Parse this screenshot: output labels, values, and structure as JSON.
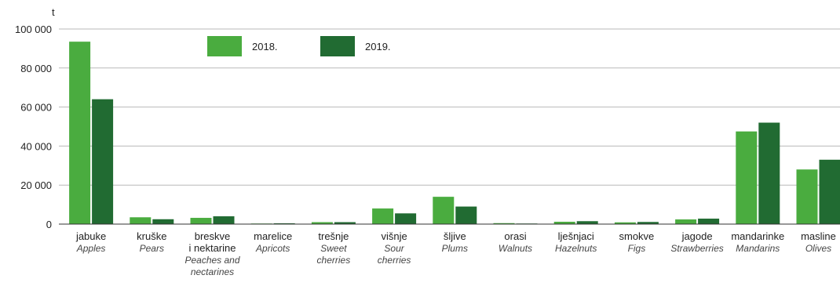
{
  "chart_data": {
    "type": "bar",
    "unit_label": "t",
    "ylim": [
      0,
      100000
    ],
    "y_ticks": [
      {
        "value": 0,
        "label": "0"
      },
      {
        "value": 20000,
        "label": "20 000"
      },
      {
        "value": 40000,
        "label": "40 000"
      },
      {
        "value": 60000,
        "label": "60 000"
      },
      {
        "value": 80000,
        "label": "80 000"
      },
      {
        "value": 100000,
        "label": "100 000"
      }
    ],
    "grid": true,
    "legend_position": "top-center",
    "categories": [
      {
        "label": [
          "jabuke"
        ],
        "sublabel": [
          "Apples"
        ]
      },
      {
        "label": [
          "kruške"
        ],
        "sublabel": [
          "Pears"
        ]
      },
      {
        "label": [
          "breskve",
          "i nektarine"
        ],
        "sublabel": [
          "Peaches and",
          "nectarines"
        ]
      },
      {
        "label": [
          "marelice"
        ],
        "sublabel": [
          "Apricots"
        ]
      },
      {
        "label": [
          "trešnje"
        ],
        "sublabel": [
          "Sweet",
          "cherries"
        ]
      },
      {
        "label": [
          "višnje"
        ],
        "sublabel": [
          "Sour",
          "cherries"
        ]
      },
      {
        "label": [
          "šljive"
        ],
        "sublabel": [
          "Plums"
        ]
      },
      {
        "label": [
          "orasi"
        ],
        "sublabel": [
          "Walnuts"
        ]
      },
      {
        "label": [
          "lješnjaci"
        ],
        "sublabel": [
          "Hazelnuts"
        ]
      },
      {
        "label": [
          "smokve"
        ],
        "sublabel": [
          "Figs"
        ]
      },
      {
        "label": [
          "jagode"
        ],
        "sublabel": [
          "Strawberries"
        ]
      },
      {
        "label": [
          "mandarinke"
        ],
        "sublabel": [
          "Mandarins"
        ]
      },
      {
        "label": [
          "masline"
        ],
        "sublabel": [
          "Olives"
        ]
      }
    ],
    "series": [
      {
        "name": "2018.",
        "color": "#4aac3f",
        "values": [
          93500,
          3500,
          3200,
          300,
          1000,
          8000,
          14000,
          500,
          1200,
          900,
          2400,
          47500,
          28000
        ]
      },
      {
        "name": "2019.",
        "color": "#216b32",
        "values": [
          64000,
          2500,
          4000,
          400,
          1000,
          5500,
          9000,
          300,
          1500,
          1100,
          2800,
          52000,
          33000
        ]
      }
    ]
  }
}
